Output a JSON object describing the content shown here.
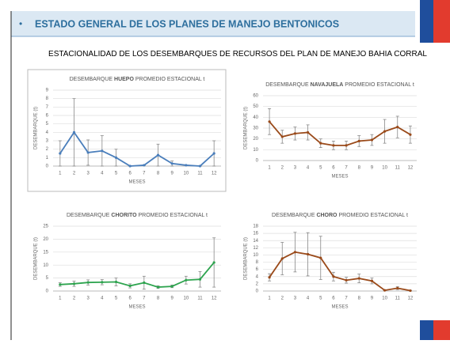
{
  "header": "ESTADO GENERAL DE LOS PLANES DE MANEJO BENTONICOS",
  "subtitle": "ESTACIONALIDAD DE LOS DESEMBARQUES DE RECURSOS DEL PLAN DE MANEJO BAHIA CORRAL",
  "chart_data": [
    {
      "type": "line",
      "title": [
        "DESEMBARQUE ",
        "HUEPO",
        " PROMEDIO ESTACIONAL t"
      ],
      "x_label": "MESES",
      "y_label": "DESEMBARQUE (t)",
      "categories": [
        "1",
        "2",
        "3",
        "4",
        "5",
        "6",
        "7",
        "8",
        "9",
        "10",
        "11",
        "12"
      ],
      "series": [
        {
          "name": "HUEPO",
          "color": "#4a7ebb",
          "values": [
            1.5,
            4.0,
            1.6,
            1.8,
            1.0,
            0.0,
            0.1,
            1.3,
            0.3,
            0.1,
            0.0,
            1.5
          ],
          "errors": [
            1.5,
            4.0,
            1.5,
            1.8,
            1.0,
            0.0,
            0.0,
            1.3,
            0.3,
            0.0,
            0.0,
            1.5
          ]
        }
      ],
      "ylim": [
        0,
        9
      ],
      "yticks": [
        0,
        1,
        2,
        3,
        4,
        5,
        6,
        7,
        8,
        9
      ],
      "grid": true
    },
    {
      "type": "line",
      "title": [
        "DESEMBARQUE ",
        "NAVAJUELA",
        " PROMEDIO ESTACIONAL t"
      ],
      "x_label": "MESES",
      "y_label": "DESEMBARQUE (t)",
      "categories": [
        "1",
        "2",
        "3",
        "4",
        "5",
        "6",
        "7",
        "8",
        "9",
        "10",
        "11",
        "12"
      ],
      "series": [
        {
          "name": "NAVAJUELA",
          "color": "#9a4a1a",
          "values": [
            36,
            22,
            25,
            26,
            16,
            14,
            14,
            18,
            19,
            27,
            31,
            24
          ],
          "errors": [
            12,
            6,
            6,
            7,
            4,
            4,
            4,
            5,
            5,
            11,
            10,
            8
          ]
        }
      ],
      "ylim": [
        0,
        60
      ],
      "yticks": [
        0,
        10,
        20,
        30,
        40,
        50,
        60
      ],
      "grid": true
    },
    {
      "type": "line",
      "title": [
        "DESEMBARQUE ",
        "CHORITO",
        " PROMEDIO ESTACIONAL t"
      ],
      "x_label": "MESES",
      "y_label": "DESEMBARQUE (t)",
      "categories": [
        "1",
        "2",
        "3",
        "4",
        "5",
        "6",
        "7",
        "8",
        "9",
        "10",
        "11",
        "12"
      ],
      "series": [
        {
          "name": "CHORITO",
          "color": "#2ea44f",
          "values": [
            2.5,
            2.8,
            3.3,
            3.4,
            3.5,
            2.0,
            3.2,
            1.5,
            1.8,
            4.2,
            4.5,
            11.0
          ],
          "errors": [
            0.7,
            1.0,
            1.0,
            1.0,
            1.5,
            0.8,
            2.5,
            0.5,
            0.5,
            1.5,
            3.0,
            9.5
          ]
        }
      ],
      "ylim": [
        0,
        25
      ],
      "yticks": [
        0,
        5,
        10,
        15,
        20,
        25
      ],
      "grid": true
    },
    {
      "type": "line",
      "title": [
        "DESEMBARQUE ",
        "CHORO",
        " PROMEDIO ESTACIONAL t"
      ],
      "x_label": "MESES",
      "y_label": "DESEMBARQUE (t)",
      "categories": [
        "1",
        "2",
        "3",
        "4",
        "5",
        "6",
        "7",
        "8",
        "9",
        "10",
        "11",
        "12"
      ],
      "series": [
        {
          "name": "CHORO",
          "color": "#9a4a1a",
          "values": [
            3.8,
            9.0,
            10.8,
            10.2,
            9.2,
            4.0,
            3.0,
            3.5,
            2.8,
            0.2,
            0.8,
            0.1
          ],
          "errors": [
            1.0,
            4.5,
            5.5,
            6.0,
            6.0,
            1.2,
            0.8,
            1.2,
            0.8,
            0.1,
            0.4,
            0.1
          ]
        }
      ],
      "ylim": [
        0,
        18
      ],
      "yticks": [
        0,
        2,
        4,
        6,
        8,
        10,
        12,
        14,
        16,
        18
      ],
      "grid": true
    }
  ]
}
